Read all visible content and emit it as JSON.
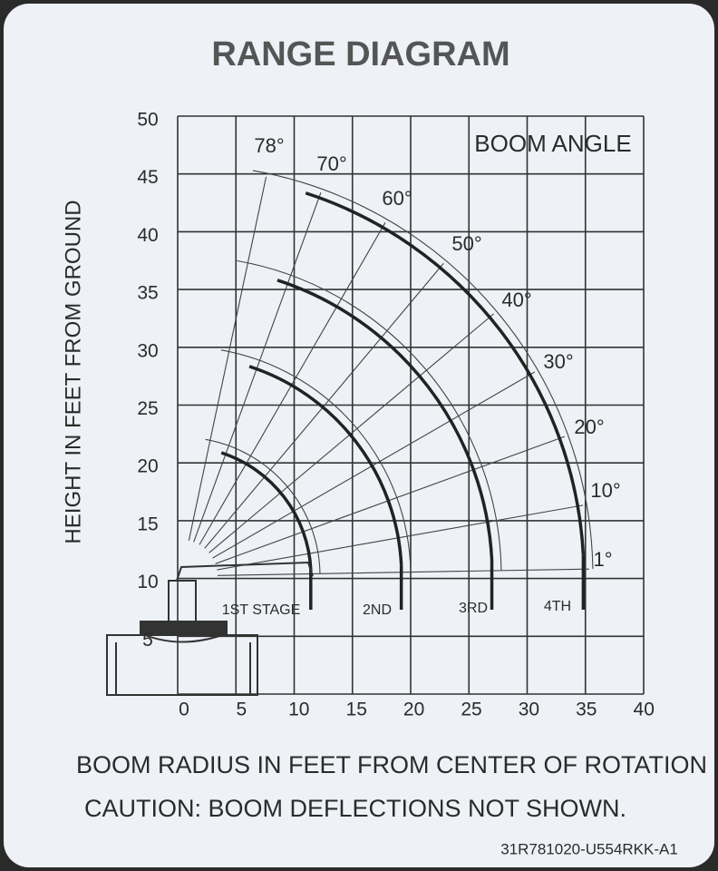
{
  "title": "RANGE DIAGRAM",
  "legend_title": "BOOM ANGLE",
  "y_axis_label": "HEIGHT IN FEET FROM GROUND",
  "x_axis_label": "BOOM RADIUS IN FEET FROM CENTER OF ROTATION",
  "caution": "CAUTION: BOOM DEFLECTIONS NOT SHOWN.",
  "part_number": "31R781020-U554RKK-A1",
  "y_ticks": [
    "50",
    "45",
    "40",
    "35",
    "30",
    "25",
    "20",
    "15",
    "10",
    "5"
  ],
  "x_ticks": [
    "0",
    "5",
    "10",
    "15",
    "20",
    "25",
    "30",
    "35",
    "40"
  ],
  "angles": [
    "78°",
    "70°",
    "60°",
    "50°",
    "40°",
    "30°",
    "20°",
    "10°",
    "1°"
  ],
  "stages": [
    "1ST STAGE",
    "2ND",
    "3RD",
    "4TH"
  ]
}
